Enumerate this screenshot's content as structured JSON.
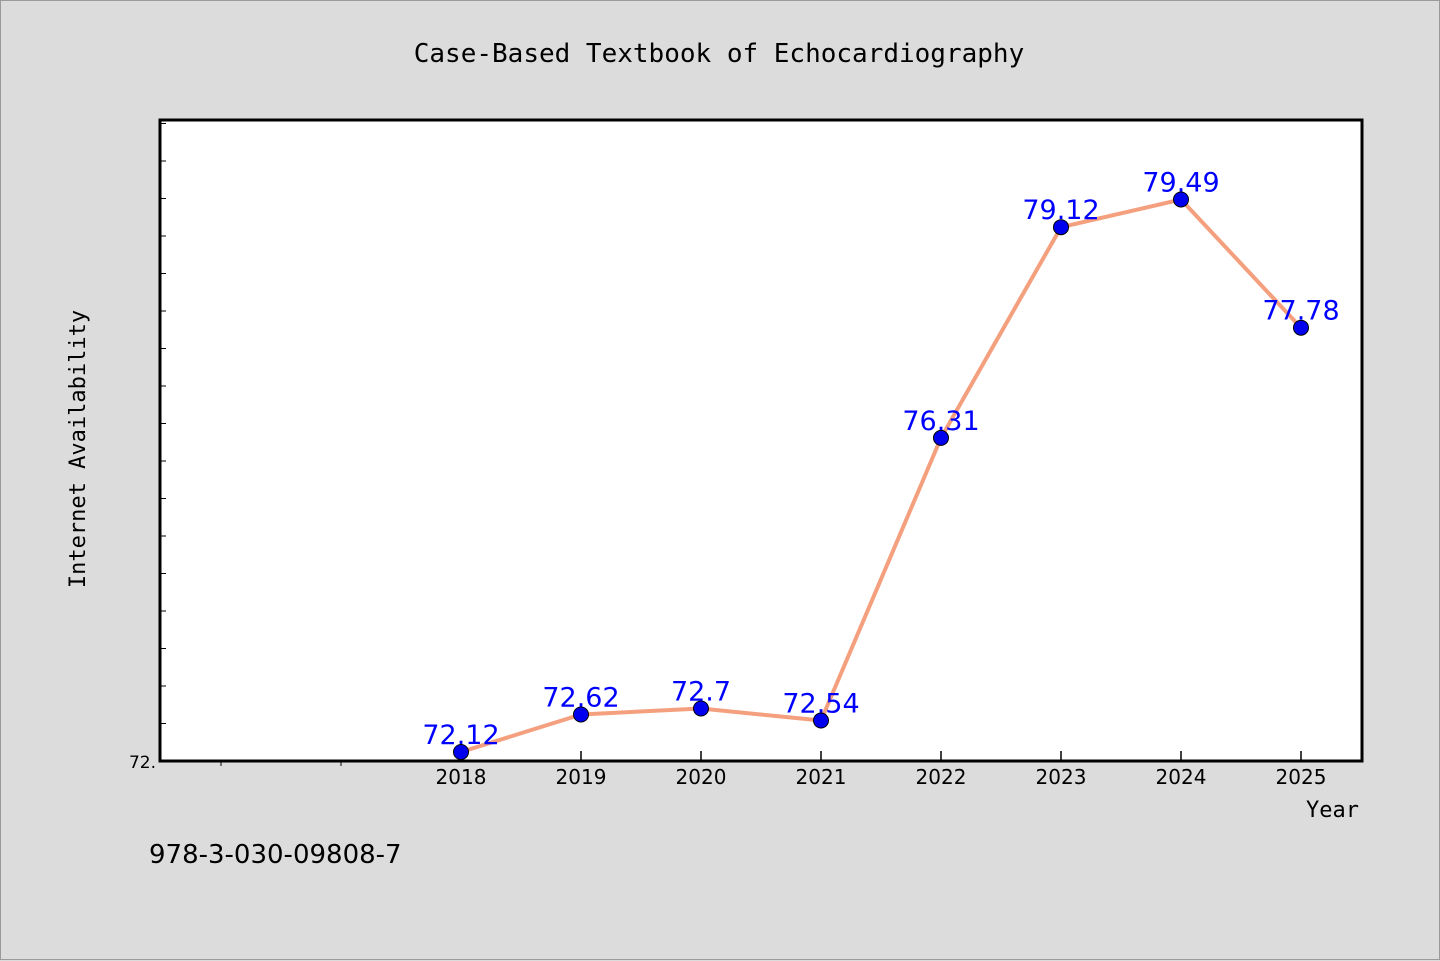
{
  "chart_data": {
    "type": "line",
    "title": "Case-Based Textbook of Echocardiography",
    "xlabel": "Year",
    "ylabel": "Internet Availability",
    "x": [
      "2018",
      "2019",
      "2020",
      "2021",
      "2022",
      "2023",
      "2024",
      "2025"
    ],
    "series": [
      {
        "values": [
          72.12,
          72.62,
          72.7,
          72.54,
          76.31,
          79.12,
          79.49,
          77.78
        ],
        "data_labels": [
          "72.12",
          "72.62",
          "72.7",
          "72.54",
          "76.31",
          "79.12",
          "79.49",
          "77.78"
        ]
      }
    ],
    "y_tick_label": "72.",
    "ylim": [
      72.0,
      80.55
    ],
    "grid": false,
    "colors": {
      "line": "#f4a07e",
      "marker": "#0000ee",
      "label": "#0000ff",
      "background": "#dcdcdc",
      "plot": "#ffffff"
    }
  },
  "footer": {
    "isbn": "978-3-030-09808-7"
  }
}
